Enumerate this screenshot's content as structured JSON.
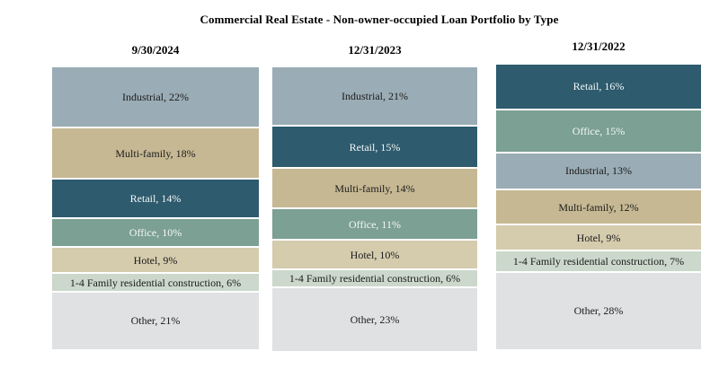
{
  "title": "Commercial Real Estate - Non-owner-occupied Loan Portfolio by Type",
  "colors": {
    "industrial": "#9AACB5",
    "multi_family": "#C6B893",
    "retail": "#2E5B6E",
    "office": "#7CA093",
    "hotel": "#D5CBAD",
    "family_1_4_construction": "#CBD8CB",
    "other": "#E0E1E2",
    "dark_text": "#1C1C1C",
    "light_text": "#F3F7F6",
    "background": "#FFFFFF"
  },
  "chart_data": {
    "type": "bar",
    "subtype": "100-percent-stacked-columns",
    "title": "Commercial Real Estate - Non-owner-occupied Loan Portfolio by Type",
    "unit": "%",
    "legend_position": "none",
    "grid": false,
    "categories": [
      "Industrial",
      "Multi-family",
      "Retail",
      "Office",
      "Hotel",
      "1-4 Family residential construction",
      "Other"
    ],
    "columns": [
      {
        "header": "9/30/2024",
        "segments": [
          {
            "category": "Industrial",
            "value": 22,
            "label": "Industrial, 22%",
            "color": "#9AACB5",
            "text_color": "#1C1C1C"
          },
          {
            "category": "Multi-family",
            "value": 18,
            "label": "Multi-family, 18%",
            "color": "#C6B893",
            "text_color": "#1C1C1C"
          },
          {
            "category": "Retail",
            "value": 14,
            "label": "Retail, 14%",
            "color": "#2E5B6E",
            "text_color": "#F3F7F6"
          },
          {
            "category": "Office",
            "value": 10,
            "label": "Office, 10%",
            "color": "#7CA093",
            "text_color": "#F3F7F6"
          },
          {
            "category": "Hotel",
            "value": 9,
            "label": "Hotel, 9%",
            "color": "#D5CBAD",
            "text_color": "#1C1C1C"
          },
          {
            "category": "1-4 Family residential construction",
            "value": 6,
            "label": "1-4 Family residential construction, 6%",
            "color": "#CBD8CB",
            "text_color": "#1C1C1C"
          },
          {
            "category": "Other",
            "value": 21,
            "label": "Other, 21%",
            "color": "#E0E1E2",
            "text_color": "#1C1C1C"
          }
        ]
      },
      {
        "header": "12/31/2023",
        "segments": [
          {
            "category": "Industrial",
            "value": 21,
            "label": "Industrial, 21%",
            "color": "#9AACB5",
            "text_color": "#1C1C1C"
          },
          {
            "category": "Retail",
            "value": 15,
            "label": "Retail, 15%",
            "color": "#2E5B6E",
            "text_color": "#F3F7F6"
          },
          {
            "category": "Multi-family",
            "value": 14,
            "label": "Multi-family, 14%",
            "color": "#C6B893",
            "text_color": "#1C1C1C"
          },
          {
            "category": "Office",
            "value": 11,
            "label": "Office, 11%",
            "color": "#7CA093",
            "text_color": "#F3F7F6"
          },
          {
            "category": "Hotel",
            "value": 10,
            "label": "Hotel, 10%",
            "color": "#D5CBAD",
            "text_color": "#1C1C1C"
          },
          {
            "category": "1-4 Family residential construction",
            "value": 6,
            "label": "1-4 Family residential construction, 6%",
            "color": "#CBD8CB",
            "text_color": "#1C1C1C"
          },
          {
            "category": "Other",
            "value": 23,
            "label": "Other, 23%",
            "color": "#E0E1E2",
            "text_color": "#1C1C1C"
          }
        ]
      },
      {
        "header": "12/31/2022",
        "segments": [
          {
            "category": "Retail",
            "value": 16,
            "label": "Retail, 16%",
            "color": "#2E5B6E",
            "text_color": "#F3F7F6"
          },
          {
            "category": "Office",
            "value": 15,
            "label": "Office, 15%",
            "color": "#7CA093",
            "text_color": "#F3F7F6"
          },
          {
            "category": "Industrial",
            "value": 13,
            "label": "Industrial, 13%",
            "color": "#9AACB5",
            "text_color": "#1C1C1C"
          },
          {
            "category": "Multi-family",
            "value": 12,
            "label": "Multi-family, 12%",
            "color": "#C6B893",
            "text_color": "#1C1C1C"
          },
          {
            "category": "Hotel",
            "value": 9,
            "label": "Hotel, 9%",
            "color": "#D5CBAD",
            "text_color": "#1C1C1C"
          },
          {
            "category": "1-4 Family residential construction",
            "value": 7,
            "label": "1-4 Family residential construction, 7%",
            "color": "#CBD8CB",
            "text_color": "#1C1C1C"
          },
          {
            "category": "Other",
            "value": 28,
            "label": "Other, 28%",
            "color": "#E0E1E2",
            "text_color": "#1C1C1C"
          }
        ]
      }
    ]
  }
}
